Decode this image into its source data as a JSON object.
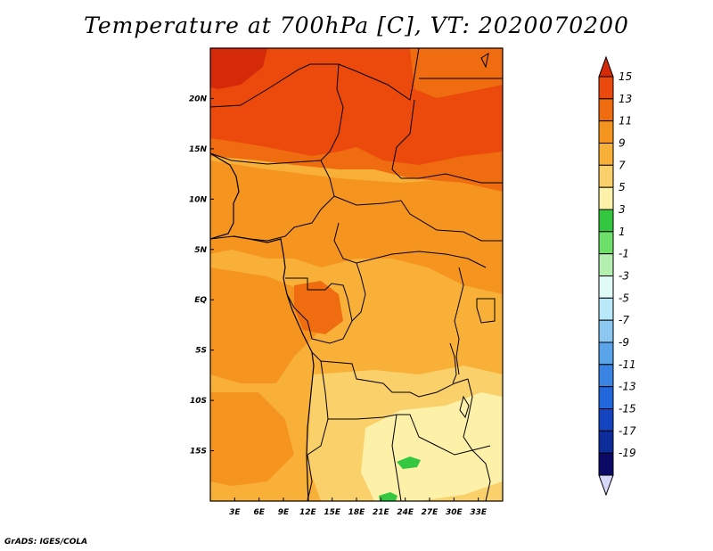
{
  "title": "Temperature at 700hPa [C], VT: 2020070200",
  "footer": "GrADS: IGES/COLA",
  "map": {
    "lon_range": [
      0,
      36
    ],
    "lat_range": [
      -20,
      25
    ],
    "lon_ticks": [
      "3E",
      "6E",
      "9E",
      "12E",
      "15E",
      "18E",
      "21E",
      "24E",
      "27E",
      "30E",
      "33E"
    ],
    "lat_ticks": [
      "20N",
      "15N",
      "10N",
      "5N",
      "EQ",
      "5S",
      "10S",
      "15S"
    ],
    "colors": {
      "deep_red": "#d42a0a",
      "red_orange": "#ec4a0c",
      "orange_dark": "#f06c10",
      "orange": "#f59520",
      "orange_light": "#f8b038",
      "yellow_orange": "#fad06a",
      "pale_yellow": "#fdf0a8",
      "green": "#33c840"
    }
  },
  "colorbar": {
    "labels": [
      "15",
      "13",
      "11",
      "9",
      "7",
      "5",
      "3",
      "1",
      "-1",
      "-3",
      "-5",
      "-7",
      "-9",
      "-11",
      "-13",
      "-15",
      "-17",
      "-19"
    ],
    "colors": [
      "#d42a0a",
      "#ec4a0c",
      "#f06c10",
      "#f59520",
      "#f8b038",
      "#fad06a",
      "#fdf0a8",
      "#33c840",
      "#6ee06a",
      "#b4f0b0",
      "#e0faf6",
      "#b8e8fa",
      "#8cc8f2",
      "#5aa4ea",
      "#3a84e4",
      "#2266dc",
      "#1444c0",
      "#0c2c9c",
      "#0a0a66",
      "#d8d8f8"
    ]
  }
}
